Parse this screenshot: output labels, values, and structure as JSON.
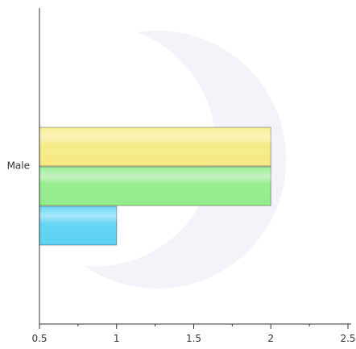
{
  "chart_data": {
    "type": "bar",
    "orientation": "horizontal",
    "categories": [
      "Male"
    ],
    "series": [
      {
        "values": [
          2
        ],
        "color": "#f5ea84"
      },
      {
        "values": [
          2
        ],
        "color": "#93eb8c"
      },
      {
        "values": [
          1
        ],
        "color": "#5dd3f2"
      }
    ],
    "xlim": [
      0.5,
      2.5
    ],
    "x_ticks": [
      "0.5",
      "1",
      "1.5",
      "2",
      "2.5"
    ],
    "grid": false,
    "legend": "none"
  },
  "colors": {
    "axis": "#333333",
    "tick_label": "#333333",
    "watermark": "#f1f3f8"
  }
}
